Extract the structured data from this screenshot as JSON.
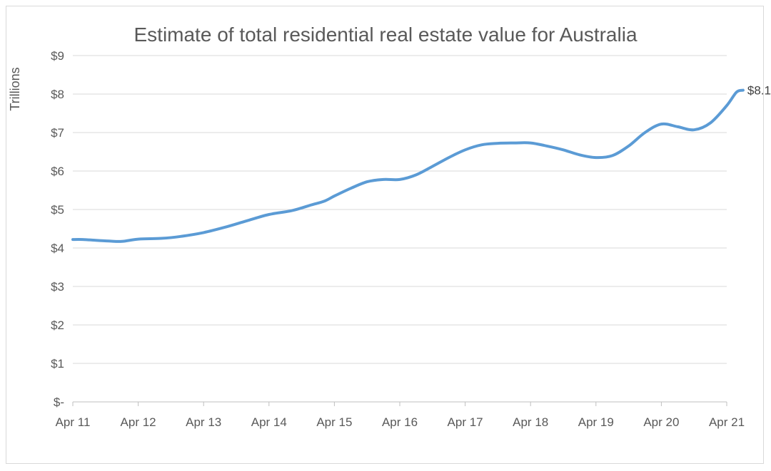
{
  "chart_data": {
    "type": "line",
    "title": "Estimate of total residential real estate value for Australia",
    "ylabel": "Trillions",
    "xlabel": "",
    "ylim": [
      0,
      9
    ],
    "y_ticks": [
      "$-",
      "$1",
      "$2",
      "$3",
      "$4",
      "$5",
      "$6",
      "$7",
      "$8",
      "$9"
    ],
    "x_ticks": [
      "Apr 11",
      "Apr 12",
      "Apr 13",
      "Apr 14",
      "Apr 15",
      "Apr 16",
      "Apr 17",
      "Apr 18",
      "Apr 19",
      "Apr 20",
      "Apr 21"
    ],
    "grid": true,
    "color": "#5b9bd5",
    "end_label": "$8.1",
    "series": [
      {
        "values": [
          [
            2011.25,
            4.22
          ],
          [
            2011.4,
            4.22
          ],
          [
            2011.6,
            4.2
          ],
          [
            2011.8,
            4.18
          ],
          [
            2012.0,
            4.17
          ],
          [
            2012.25,
            4.23
          ],
          [
            2012.6,
            4.25
          ],
          [
            2012.9,
            4.3
          ],
          [
            2013.25,
            4.4
          ],
          [
            2013.6,
            4.55
          ],
          [
            2013.9,
            4.7
          ],
          [
            2014.25,
            4.87
          ],
          [
            2014.6,
            4.97
          ],
          [
            2014.9,
            5.12
          ],
          [
            2015.1,
            5.22
          ],
          [
            2015.25,
            5.35
          ],
          [
            2015.5,
            5.55
          ],
          [
            2015.75,
            5.72
          ],
          [
            2016.0,
            5.78
          ],
          [
            2016.25,
            5.78
          ],
          [
            2016.5,
            5.9
          ],
          [
            2016.75,
            6.12
          ],
          [
            2017.0,
            6.35
          ],
          [
            2017.25,
            6.55
          ],
          [
            2017.5,
            6.68
          ],
          [
            2017.75,
            6.72
          ],
          [
            2018.0,
            6.73
          ],
          [
            2018.25,
            6.73
          ],
          [
            2018.5,
            6.65
          ],
          [
            2018.75,
            6.55
          ],
          [
            2019.0,
            6.42
          ],
          [
            2019.25,
            6.35
          ],
          [
            2019.5,
            6.4
          ],
          [
            2019.75,
            6.65
          ],
          [
            2020.0,
            7.0
          ],
          [
            2020.25,
            7.22
          ],
          [
            2020.5,
            7.15
          ],
          [
            2020.75,
            7.07
          ],
          [
            2021.0,
            7.25
          ],
          [
            2021.25,
            7.7
          ],
          [
            2021.4,
            8.05
          ],
          [
            2021.5,
            8.1
          ]
        ]
      }
    ]
  }
}
